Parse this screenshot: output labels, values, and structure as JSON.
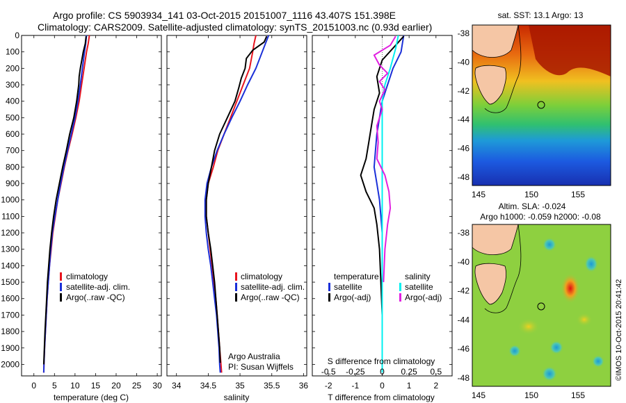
{
  "header": {
    "line1": "Argo profile: CS 5903934_141 03-Oct-2015 20151007_1116 43.407S 151.398E",
    "line2": "Climatology: CARS2009. Satellite-adjusted climatology: synTS_20151003.nc (0.93d earlier)"
  },
  "colors": {
    "climatology": "#e8141e",
    "satellite": "#1a2fd8",
    "argo": "#000000",
    "salinity_satellite": "#00f0f0",
    "salinity_argo": "#e020e0"
  },
  "chart_data": [
    {
      "type": "line",
      "panel": "temperature",
      "xlabel": "temperature (deg C)",
      "xlim": [
        -3,
        31
      ],
      "xticks": [
        0,
        5,
        10,
        15,
        20,
        25,
        30
      ],
      "ylim": [
        2070,
        0
      ],
      "yticks": [
        0,
        100,
        200,
        300,
        400,
        500,
        600,
        700,
        800,
        900,
        1000,
        1100,
        1200,
        1300,
        1400,
        1500,
        1600,
        1700,
        1800,
        1900,
        2000
      ],
      "legend": [
        "climatology",
        "satellite-adj. clim.",
        "Argo(..raw -QC)"
      ],
      "series": [
        {
          "name": "climatology",
          "color": "#e8141e",
          "points": [
            [
              13.5,
              0
            ],
            [
              13.2,
              50
            ],
            [
              12.8,
              100
            ],
            [
              12.2,
              200
            ],
            [
              11.6,
              300
            ],
            [
              11.0,
              400
            ],
            [
              10.2,
              500
            ],
            [
              9.3,
              600
            ],
            [
              8.3,
              700
            ],
            [
              7.4,
              800
            ],
            [
              6.6,
              900
            ],
            [
              5.8,
              1000
            ],
            [
              5.2,
              1100
            ],
            [
              4.6,
              1200
            ],
            [
              4.2,
              1300
            ],
            [
              3.8,
              1400
            ],
            [
              3.5,
              1500
            ],
            [
              3.2,
              1600
            ],
            [
              3.0,
              1700
            ],
            [
              2.8,
              1800
            ],
            [
              2.6,
              1900
            ],
            [
              2.45,
              2000
            ],
            [
              2.4,
              2050
            ]
          ]
        },
        {
          "name": "satellite-adj. clim.",
          "color": "#1a2fd8",
          "points": [
            [
              12.8,
              0
            ],
            [
              12.6,
              50
            ],
            [
              12.3,
              100
            ],
            [
              11.8,
              200
            ],
            [
              11.3,
              300
            ],
            [
              10.7,
              400
            ],
            [
              10.0,
              500
            ],
            [
              9.1,
              600
            ],
            [
              8.2,
              700
            ],
            [
              7.3,
              800
            ],
            [
              6.5,
              900
            ],
            [
              5.8,
              1000
            ],
            [
              5.1,
              1100
            ],
            [
              4.5,
              1200
            ],
            [
              4.1,
              1300
            ],
            [
              3.8,
              1400
            ],
            [
              3.5,
              1500
            ],
            [
              3.2,
              1600
            ],
            [
              3.0,
              1700
            ],
            [
              2.8,
              1800
            ],
            [
              2.6,
              1900
            ],
            [
              2.45,
              2000
            ],
            [
              2.4,
              2050
            ]
          ]
        },
        {
          "name": "Argo(..raw -QC)",
          "color": "#000000",
          "points": [
            [
              12.7,
              5
            ],
            [
              12.5,
              50
            ],
            [
              12.0,
              100
            ],
            [
              11.3,
              200
            ],
            [
              11.0,
              250
            ],
            [
              10.9,
              300
            ],
            [
              10.4,
              400
            ],
            [
              9.7,
              500
            ],
            [
              8.7,
              600
            ],
            [
              7.9,
              700
            ],
            [
              7.0,
              800
            ],
            [
              6.2,
              900
            ],
            [
              5.4,
              1000
            ],
            [
              4.8,
              1100
            ],
            [
              4.3,
              1200
            ],
            [
              3.9,
              1300
            ],
            [
              3.6,
              1400
            ],
            [
              3.3,
              1500
            ],
            [
              3.1,
              1600
            ],
            [
              2.9,
              1700
            ],
            [
              2.7,
              1800
            ],
            [
              2.55,
              1900
            ],
            [
              2.4,
              2000
            ]
          ]
        }
      ]
    },
    {
      "type": "line",
      "panel": "salinity",
      "xlabel": "salinity",
      "xlim": [
        33.85,
        36.05
      ],
      "xticks": [
        34,
        34.5,
        35,
        35.5,
        36
      ],
      "xtick_labels": [
        "34",
        "34.5",
        "35",
        "35.5",
        "36"
      ],
      "ylim": [
        2070,
        0
      ],
      "legend": [
        "climatology",
        "satellite-adj. clim.",
        "Argo(..raw -QC)"
      ],
      "annotation": [
        "Argo Australia",
        "PI: Susan Wijffels"
      ],
      "series": [
        {
          "name": "climatology",
          "color": "#e8141e",
          "points": [
            [
              35.25,
              0
            ],
            [
              35.22,
              50
            ],
            [
              35.2,
              100
            ],
            [
              35.15,
              200
            ],
            [
              35.05,
              300
            ],
            [
              34.95,
              400
            ],
            [
              34.85,
              500
            ],
            [
              34.75,
              600
            ],
            [
              34.65,
              700
            ],
            [
              34.58,
              800
            ],
            [
              34.5,
              900
            ],
            [
              34.47,
              1000
            ],
            [
              34.47,
              1100
            ],
            [
              34.5,
              1200
            ],
            [
              34.53,
              1300
            ],
            [
              34.56,
              1400
            ],
            [
              34.59,
              1500
            ],
            [
              34.62,
              1600
            ],
            [
              34.64,
              1700
            ],
            [
              34.66,
              1800
            ],
            [
              34.68,
              1900
            ],
            [
              34.7,
              2000
            ],
            [
              34.71,
              2050
            ]
          ]
        },
        {
          "name": "satellite-adj. clim.",
          "color": "#1a2fd8",
          "points": [
            [
              35.45,
              0
            ],
            [
              35.4,
              50
            ],
            [
              35.35,
              100
            ],
            [
              35.25,
              200
            ],
            [
              35.12,
              300
            ],
            [
              35.0,
              400
            ],
            [
              34.87,
              500
            ],
            [
              34.75,
              600
            ],
            [
              34.64,
              700
            ],
            [
              34.55,
              800
            ],
            [
              34.48,
              900
            ],
            [
              34.45,
              1000
            ],
            [
              34.45,
              1100
            ],
            [
              34.47,
              1200
            ],
            [
              34.5,
              1300
            ],
            [
              34.54,
              1400
            ],
            [
              34.57,
              1500
            ],
            [
              34.6,
              1600
            ],
            [
              34.63,
              1700
            ],
            [
              34.65,
              1800
            ],
            [
              34.67,
              1900
            ],
            [
              34.68,
              2000
            ],
            [
              34.69,
              2050
            ]
          ]
        },
        {
          "name": "Argo(..raw -QC)",
          "color": "#000000",
          "points": [
            [
              35.42,
              5
            ],
            [
              35.38,
              40
            ],
            [
              35.2,
              90
            ],
            [
              35.1,
              140
            ],
            [
              35.08,
              200
            ],
            [
              35.02,
              260
            ],
            [
              34.98,
              320
            ],
            [
              34.92,
              400
            ],
            [
              34.8,
              500
            ],
            [
              34.68,
              600
            ],
            [
              34.6,
              700
            ],
            [
              34.55,
              800
            ],
            [
              34.5,
              900
            ],
            [
              34.47,
              1000
            ],
            [
              34.47,
              1100
            ],
            [
              34.5,
              1200
            ],
            [
              34.54,
              1300
            ],
            [
              34.57,
              1400
            ],
            [
              34.6,
              1500
            ],
            [
              34.62,
              1600
            ],
            [
              34.64,
              1700
            ],
            [
              34.66,
              1800
            ],
            [
              34.68,
              1900
            ],
            [
              34.69,
              1990
            ]
          ]
        }
      ]
    },
    {
      "type": "line",
      "panel": "differences",
      "xlabel": "T difference from climatology",
      "xlabel_top": "S difference from climatology",
      "xlim": [
        -2.6,
        2.6
      ],
      "xticks": [
        -2,
        -1,
        0,
        1,
        2
      ],
      "xtick_labels": [
        "-2",
        "-1",
        "0",
        "1",
        "2"
      ],
      "xticks_top": [
        -0.5,
        -0.25,
        0,
        0.25,
        0.5
      ],
      "xtick_labels_top": [
        "-0.5",
        "-0.25",
        "0",
        "0.25",
        "0.5"
      ],
      "ylim": [
        2070,
        0
      ],
      "legend_left_title": "temperature",
      "legend_right_title": "salinity",
      "legend_left": [
        "satellite",
        "Argo(-adj)"
      ],
      "legend_right": [
        "satellite",
        "Argo(-adj)"
      ],
      "series": [
        {
          "name": "satellite",
          "color": "#1a2fd8",
          "points": [
            [
              0.8,
              0
            ],
            [
              0.7,
              100
            ],
            [
              0.4,
              200
            ],
            [
              0.2,
              300
            ],
            [
              0.0,
              400
            ],
            [
              -0.1,
              500
            ],
            [
              -0.2,
              600
            ],
            [
              -0.25,
              700
            ],
            [
              -0.3,
              800
            ],
            [
              -0.2,
              900
            ],
            [
              -0.1,
              1000
            ],
            [
              -0.05,
              1100
            ],
            [
              0.0,
              1200
            ],
            [
              0.0,
              1400
            ],
            [
              0.0,
              1600
            ],
            [
              0.0,
              1800
            ],
            [
              0.0,
              2050
            ]
          ]
        },
        {
          "name": "Argo(-adj)",
          "color": "#000000",
          "points": [
            [
              0.8,
              5
            ],
            [
              0.5,
              60
            ],
            [
              0.0,
              150
            ],
            [
              -0.2,
              250
            ],
            [
              -0.1,
              350
            ],
            [
              -0.3,
              450
            ],
            [
              -0.4,
              550
            ],
            [
              -0.5,
              650
            ],
            [
              -0.6,
              750
            ],
            [
              -0.8,
              850
            ],
            [
              -0.6,
              950
            ],
            [
              -0.3,
              1050
            ],
            [
              -0.2,
              1150
            ],
            [
              -0.1,
              1300
            ],
            [
              -0.05,
              1500
            ],
            [
              0.0,
              1700
            ]
          ]
        },
        {
          "name": "salinity satellite",
          "color": "#00f0f0",
          "points": [
            [
              0.6,
              0
            ],
            [
              0.5,
              80
            ],
            [
              0.3,
              200
            ],
            [
              0.1,
              300
            ],
            [
              0.0,
              400
            ],
            [
              0.0,
              500
            ],
            [
              0.0,
              700
            ],
            [
              0.0,
              900
            ],
            [
              0.0,
              1200
            ],
            [
              0.0,
              1500
            ],
            [
              0.0,
              1800
            ],
            [
              0.0,
              2050
            ]
          ]
        },
        {
          "name": "salinity Argo(-adj)",
          "color": "#e020e0",
          "points": [
            [
              0.5,
              5
            ],
            [
              0.3,
              60
            ],
            [
              -0.3,
              120
            ],
            [
              -0.1,
              180
            ],
            [
              0.2,
              230
            ],
            [
              -0.1,
              280
            ],
            [
              0.1,
              330
            ],
            [
              -0.1,
              400
            ],
            [
              0.0,
              450
            ],
            [
              -0.2,
              550
            ],
            [
              -0.15,
              650
            ],
            [
              -0.2,
              750
            ],
            [
              0.1,
              850
            ],
            [
              0.25,
              950
            ],
            [
              0.3,
              1050
            ],
            [
              0.2,
              1150
            ],
            [
              0.1,
              1300
            ],
            [
              0.05,
              1500
            ]
          ]
        }
      ]
    }
  ],
  "maps": {
    "sst": {
      "title": "sat. SST: 13.1   Argo: 13",
      "lat_ticks": [
        "-38",
        "-40",
        "-42",
        "-44",
        "-46",
        "-48"
      ],
      "lon_ticks": [
        "145",
        "150",
        "155"
      ]
    },
    "sla": {
      "title_line1": "Altim. SLA: -0.024",
      "title_line2": "Argo h1000: -0.059  h2000: -0.08",
      "lat_ticks": [
        "-38",
        "-40",
        "-42",
        "-44",
        "-46",
        "-48"
      ],
      "lon_ticks": [
        "145",
        "150",
        "155"
      ]
    },
    "credit": "©IMOS 10-Oct-2015 20:41:42"
  },
  "yaxis": {
    "depth_labels": [
      "0",
      "100",
      "200",
      "300",
      "400",
      "500",
      "600",
      "700",
      "800",
      "900",
      "1000",
      "1100",
      "1200",
      "1300",
      "1400",
      "1500",
      "1600",
      "1700",
      "1800",
      "1900",
      "2000"
    ]
  }
}
